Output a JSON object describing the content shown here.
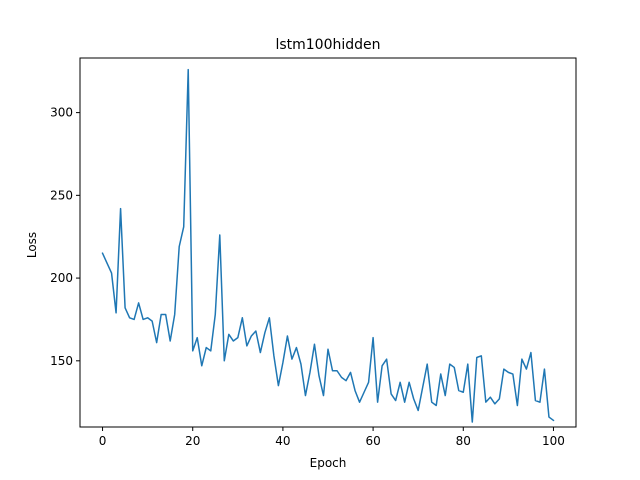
{
  "chart_data": {
    "type": "line",
    "title": "lstm100hidden",
    "xlabel": "Epoch",
    "ylabel": "Loss",
    "xlim": [
      -5,
      105
    ],
    "ylim": [
      110,
      333
    ],
    "xticks": [
      0,
      20,
      40,
      60,
      80,
      100
    ],
    "yticks": [
      150,
      200,
      250,
      300
    ],
    "grid": false,
    "series": [
      {
        "color": "#1f77b4",
        "x": [
          0,
          1,
          2,
          3,
          4,
          5,
          6,
          7,
          8,
          9,
          10,
          11,
          12,
          13,
          14,
          15,
          16,
          17,
          18,
          19,
          20,
          21,
          22,
          23,
          24,
          25,
          26,
          27,
          28,
          29,
          30,
          31,
          32,
          33,
          34,
          35,
          36,
          37,
          38,
          39,
          40,
          41,
          42,
          43,
          44,
          45,
          46,
          47,
          48,
          49,
          50,
          51,
          52,
          53,
          54,
          55,
          56,
          57,
          58,
          59,
          60,
          61,
          62,
          63,
          64,
          65,
          66,
          67,
          68,
          69,
          70,
          71,
          72,
          73,
          74,
          75,
          76,
          77,
          78,
          79,
          80,
          81,
          82,
          83,
          84,
          85,
          86,
          87,
          88,
          89,
          90,
          91,
          92,
          93,
          94,
          95,
          96,
          97,
          98,
          99,
          100
        ],
        "values": [
          215,
          209,
          203,
          179,
          242,
          182,
          176,
          175,
          185,
          175,
          176,
          174,
          161,
          178,
          178,
          162,
          178,
          219,
          231,
          326,
          156,
          164,
          147,
          158,
          156,
          178,
          226,
          150,
          166,
          162,
          164,
          176,
          159,
          165,
          168,
          155,
          167,
          176,
          153,
          135,
          149,
          165,
          151,
          158,
          148,
          129,
          143,
          160,
          141,
          129,
          157,
          144,
          144,
          140,
          138,
          143,
          132,
          125,
          131,
          137,
          164,
          125,
          147,
          151,
          130,
          126,
          137,
          125,
          137,
          127,
          120,
          134,
          148,
          125,
          123,
          142,
          129,
          148,
          146,
          132,
          131,
          148,
          113,
          152,
          153,
          125,
          128,
          124,
          127,
          145,
          143,
          142,
          123,
          151,
          145,
          155,
          126,
          125,
          145,
          116,
          114
        ]
      }
    ]
  }
}
